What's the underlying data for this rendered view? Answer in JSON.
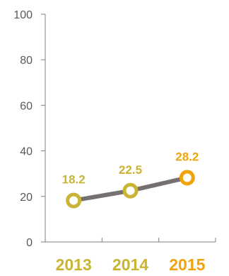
{
  "chart_data": {
    "type": "line",
    "categories": [
      "2013",
      "2014",
      "2015"
    ],
    "series": [
      {
        "values": [
          18.2,
          22.5,
          28.2
        ],
        "data_labels": [
          "18.2",
          "22.5",
          "28.2"
        ],
        "line_color": "#767171",
        "point_colors": [
          "#C9B434",
          "#C9B434",
          "#F0A30A"
        ]
      }
    ],
    "category_label_colors": [
      "#C9B434",
      "#C9B434",
      "#F0A30A"
    ],
    "ylim": [
      0,
      100
    ],
    "yticks": [
      0,
      20,
      40,
      60,
      80,
      100
    ],
    "ytick_labels": [
      "0",
      "20",
      "40",
      "60",
      "80",
      "100"
    ],
    "grid": false,
    "legend": "none",
    "axis_color": "#7F7F7F"
  }
}
